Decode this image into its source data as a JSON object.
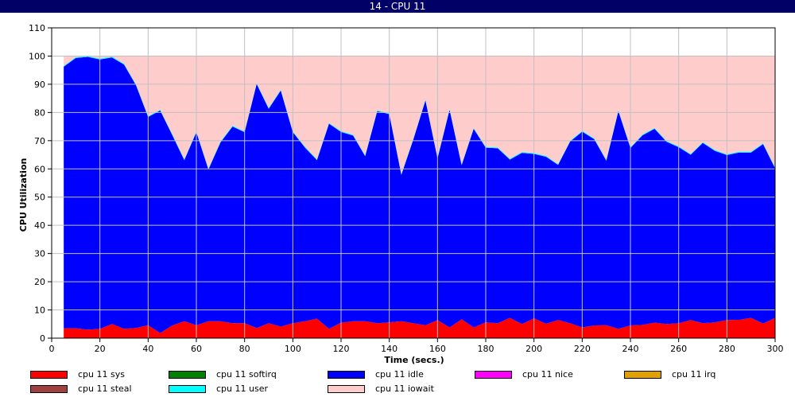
{
  "window": {
    "title": "14 - CPU 11"
  },
  "chart_data": {
    "type": "area",
    "stacked": true,
    "title": "14 - CPU 11",
    "xlabel": "Time (secs.)",
    "ylabel": "CPU Utilization",
    "xlim": [
      0,
      300
    ],
    "ylim": [
      0,
      110
    ],
    "xticks": [
      0,
      20,
      40,
      60,
      80,
      100,
      120,
      140,
      160,
      180,
      200,
      220,
      240,
      260,
      280,
      300
    ],
    "yticks": [
      0,
      10,
      20,
      30,
      40,
      50,
      60,
      70,
      80,
      90,
      100,
      110
    ],
    "grid": true,
    "legend_position": "bottom",
    "x": [
      5,
      10,
      15,
      20,
      25,
      30,
      35,
      40,
      45,
      50,
      55,
      60,
      65,
      70,
      75,
      80,
      85,
      90,
      95,
      100,
      105,
      110,
      115,
      120,
      125,
      130,
      135,
      140,
      145,
      150,
      155,
      160,
      165,
      170,
      175,
      180,
      185,
      190,
      195,
      200,
      205,
      210,
      215,
      220,
      225,
      230,
      235,
      240,
      245,
      250,
      255,
      260,
      265,
      270,
      275,
      280,
      285,
      290,
      295,
      300
    ],
    "series": [
      {
        "name": "cpu 11 sys",
        "color": "#ff0000",
        "values": [
          3.5,
          3.5,
          3,
          3.3,
          5,
          3.3,
          3.6,
          4.6,
          1.8,
          4.5,
          6,
          4.6,
          6,
          6,
          5.3,
          5.3,
          3.6,
          5.3,
          4.1,
          5.3,
          6,
          6.9,
          3.3,
          5.5,
          6,
          6,
          5.3,
          5.6,
          6,
          5.3,
          4.6,
          6.4,
          3.8,
          6.7,
          3.8,
          5.6,
          5.3,
          7.2,
          5,
          7,
          5.1,
          6.4,
          5.3,
          3.8,
          4.5,
          4.6,
          3.3,
          4.5,
          4.7,
          5.5,
          5,
          5.3,
          6.4,
          5.3,
          5.6,
          6.4,
          6.5,
          7.2,
          5.2,
          7.2
        ]
      },
      {
        "name": "cpu 11 softirq",
        "color": "#008000",
        "values": [
          0,
          0,
          0,
          0,
          0,
          0,
          0,
          0,
          0,
          0,
          0,
          0,
          0,
          0,
          0,
          0,
          0,
          0,
          0,
          0,
          0,
          0,
          0,
          0,
          0,
          0,
          0,
          0,
          0,
          0,
          0,
          0,
          0,
          0,
          0,
          0,
          0,
          0,
          0,
          0,
          0,
          0,
          0,
          0,
          0,
          0,
          0,
          0,
          0,
          0,
          0,
          0,
          0,
          0,
          0,
          0,
          0,
          0,
          0,
          0
        ]
      },
      {
        "name": "cpu 11 idle",
        "color": "#0000ff",
        "values": [
          92.7,
          95.8,
          96.7,
          95.5,
          94.5,
          93.7,
          86,
          73.8,
          78.9,
          67.5,
          57.1,
          68.4,
          53.8,
          63.4,
          69.7,
          67.7,
          86.5,
          76,
          83.7,
          67.7,
          61.6,
          56.2,
          72.7,
          67.6,
          65.8,
          58.5,
          75.2,
          73.8,
          51.9,
          65.2,
          79.7,
          57.3,
          77.2,
          54.6,
          70.4,
          61.9,
          62,
          56.1,
          60.7,
          58.3,
          59.2,
          55,
          64.4,
          69.4,
          66,
          58.3,
          77.2,
          62.9,
          67.2,
          68.7,
          64.6,
          62.4,
          58.6,
          63.9,
          60.8,
          58.5,
          59.3,
          58.6,
          63.6,
          53
        ]
      },
      {
        "name": "cpu 11 nice",
        "color": "#ff00ff",
        "values": [
          0,
          0,
          0,
          0,
          0,
          0,
          0,
          0,
          0,
          0,
          0,
          0,
          0,
          0,
          0,
          0,
          0,
          0,
          0,
          0,
          0,
          0,
          0,
          0,
          0,
          0,
          0,
          0,
          0,
          0,
          0,
          0,
          0,
          0,
          0,
          0,
          0,
          0,
          0,
          0,
          0,
          0,
          0,
          0,
          0,
          0,
          0,
          0,
          0,
          0,
          0,
          0,
          0,
          0,
          0,
          0,
          0,
          0,
          0,
          0
        ]
      },
      {
        "name": "cpu 11 irq",
        "color": "#e0a000",
        "values": [
          0,
          0,
          0,
          0,
          0,
          0,
          0,
          0,
          0,
          0,
          0,
          0,
          0,
          0,
          0,
          0,
          0,
          0,
          0,
          0,
          0,
          0,
          0,
          0,
          0,
          0,
          0,
          0,
          0,
          0,
          0,
          0,
          0,
          0,
          0,
          0,
          0,
          0,
          0,
          0,
          0,
          0,
          0,
          0,
          0,
          0,
          0,
          0,
          0,
          0,
          0,
          0,
          0,
          0,
          0,
          0,
          0,
          0,
          0,
          0
        ]
      },
      {
        "name": "cpu 11 steal",
        "color": "#a04040",
        "values": [
          0,
          0,
          0,
          0,
          0,
          0,
          0,
          0,
          0,
          0,
          0,
          0,
          0,
          0,
          0,
          0,
          0,
          0,
          0,
          0,
          0,
          0,
          0,
          0,
          0,
          0,
          0,
          0,
          0,
          0,
          0,
          0,
          0,
          0,
          0,
          0,
          0,
          0,
          0,
          0,
          0,
          0,
          0,
          0,
          0,
          0,
          0,
          0,
          0,
          0,
          0,
          0,
          0,
          0,
          0,
          0,
          0,
          0,
          0,
          0
        ]
      },
      {
        "name": "cpu 11 user",
        "color": "#00ffff",
        "values": [
          0.3,
          0.3,
          0.3,
          0.3,
          0.3,
          0.3,
          0.3,
          0.3,
          0.3,
          0.3,
          0.3,
          0.3,
          0.3,
          0.3,
          0.3,
          0.3,
          0.3,
          0.3,
          0.3,
          0.3,
          0.3,
          0.3,
          0.3,
          0.3,
          0.3,
          0.3,
          0.3,
          0.3,
          0.3,
          0.3,
          0.3,
          0.3,
          0.3,
          0.3,
          0.3,
          0.3,
          0.3,
          0.3,
          0.3,
          0.3,
          0.3,
          0.3,
          0.3,
          0.3,
          0.3,
          0.3,
          0.3,
          0.3,
          0.3,
          0.3,
          0.3,
          0.3,
          0.3,
          0.3,
          0.3,
          0.3,
          0.3,
          0.3,
          0.3,
          0.3
        ]
      },
      {
        "name": "cpu 11 iowait",
        "color": "#ffcccc",
        "values": [
          3.5,
          0.4,
          0,
          0.9,
          0.2,
          2.7,
          10.1,
          21.3,
          19,
          27.7,
          36.6,
          26.7,
          39.9,
          30.3,
          24.7,
          26.7,
          9.6,
          18.4,
          11.9,
          26.7,
          32.1,
          36.6,
          23.7,
          26.6,
          27.9,
          35.2,
          19.2,
          20.3,
          41.8,
          29.2,
          15.4,
          36,
          18.7,
          38.4,
          25.5,
          32.2,
          32.4,
          36.4,
          34,
          34.4,
          35.4,
          38.3,
          30,
          26.5,
          29.2,
          36.8,
          19.2,
          32.3,
          27.8,
          25.5,
          30.1,
          32,
          34.7,
          30.5,
          33.3,
          34.8,
          33.9,
          33.9,
          30.9,
          39.5
        ]
      }
    ]
  }
}
